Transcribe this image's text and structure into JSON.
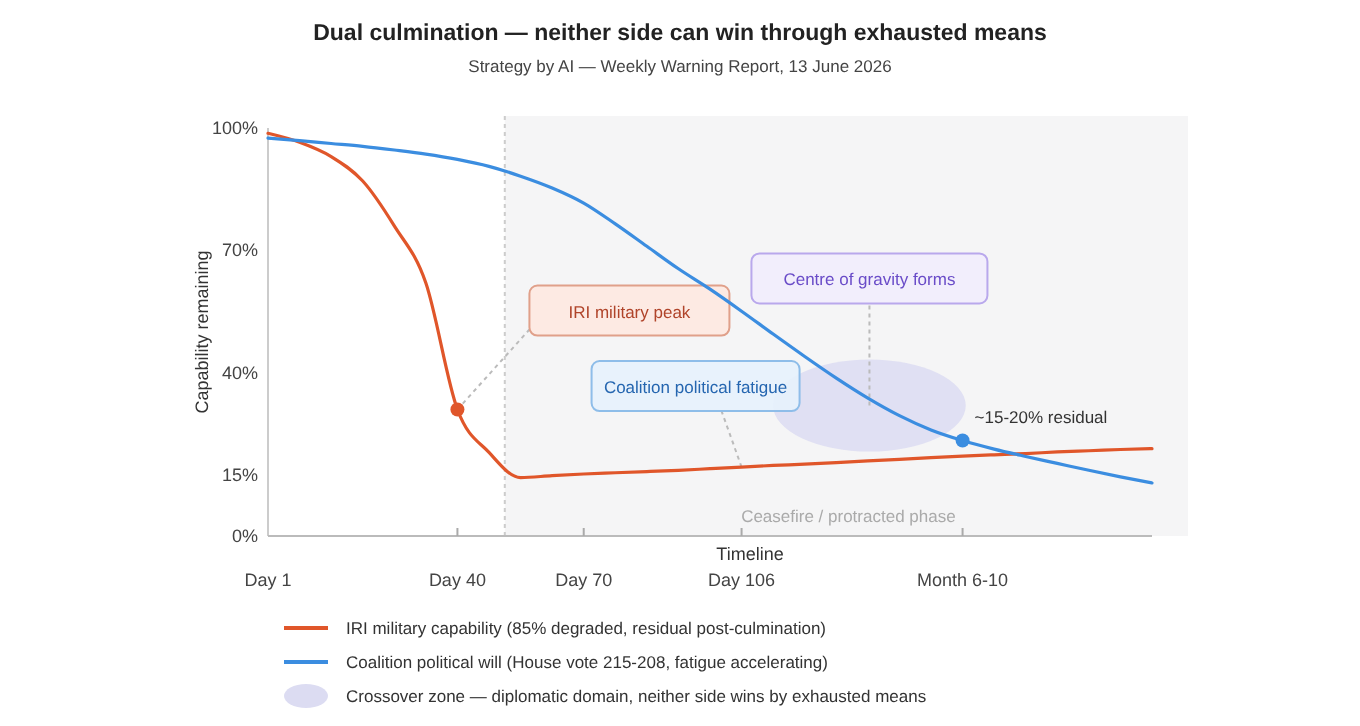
{
  "chart_data": {
    "type": "line",
    "title": "Dual culmination — neither side can win through exhausted means",
    "subtitle": "Strategy by AI — Weekly Warning Report, 13 June 2026",
    "xlabel": "Timeline",
    "ylabel": "Capability remaining",
    "categories": [
      "Day 1",
      null,
      null,
      null,
      null,
      null,
      "Day 40",
      null,
      null,
      null,
      "Day 70",
      null,
      null,
      null,
      null,
      "Day 106",
      null,
      null,
      null,
      null,
      null,
      null,
      "Month 6-10",
      null,
      null,
      null,
      null,
      null,
      null
    ],
    "ylim": [
      0,
      100
    ],
    "yticks": [
      {
        "value": 0,
        "label": "0%"
      },
      {
        "value": 15,
        "label": "15%"
      },
      {
        "value": 40,
        "label": "40%"
      },
      {
        "value": 70,
        "label": "70%"
      },
      {
        "value": 100,
        "label": "100%"
      }
    ],
    "series": [
      {
        "name": "IRI military capability (85% degraded, residual post-culmination)",
        "color": "#e0562a",
        "values": [
          98.7,
          96.5,
          93,
          87,
          76,
          62,
          31,
          20.5,
          14.3,
          14.8,
          15.2,
          15.5,
          15.8,
          16.1,
          16.5,
          16.9,
          17.3,
          17.6,
          18,
          18.4,
          18.8,
          19.2,
          19.6,
          19.9,
          20.2,
          20.6,
          20.9,
          21.2,
          21.4
        ]
      },
      {
        "name": "Coalition political will (House vote 215-208, fatigue accelerating)",
        "color": "#3b8de0",
        "values": [
          97.5,
          96.9,
          96.2,
          95.5,
          94.6,
          93.6,
          92.3,
          90.6,
          88.2,
          85.3,
          81.6,
          76.5,
          71,
          65.5,
          60.5,
          55.1,
          49.5,
          44,
          38.7,
          33.8,
          29.5,
          26,
          23.4,
          21.3,
          19.5,
          17.8,
          16.1,
          14.5,
          13
        ]
      }
    ],
    "annotations": [
      "IRI military peak",
      {
        "text": "Centre of gravity forms",
        "y": 32
      },
      "Coalition political fatigue",
      "~15-20% residual",
      "Ceasefire / protracted phase",
      "Crossover zone — diplomatic domain, neither side wins by exhausted means"
    ],
    "legend": "bottom",
    "grid": false,
    "line_style": "solid",
    "marker": "none"
  }
}
